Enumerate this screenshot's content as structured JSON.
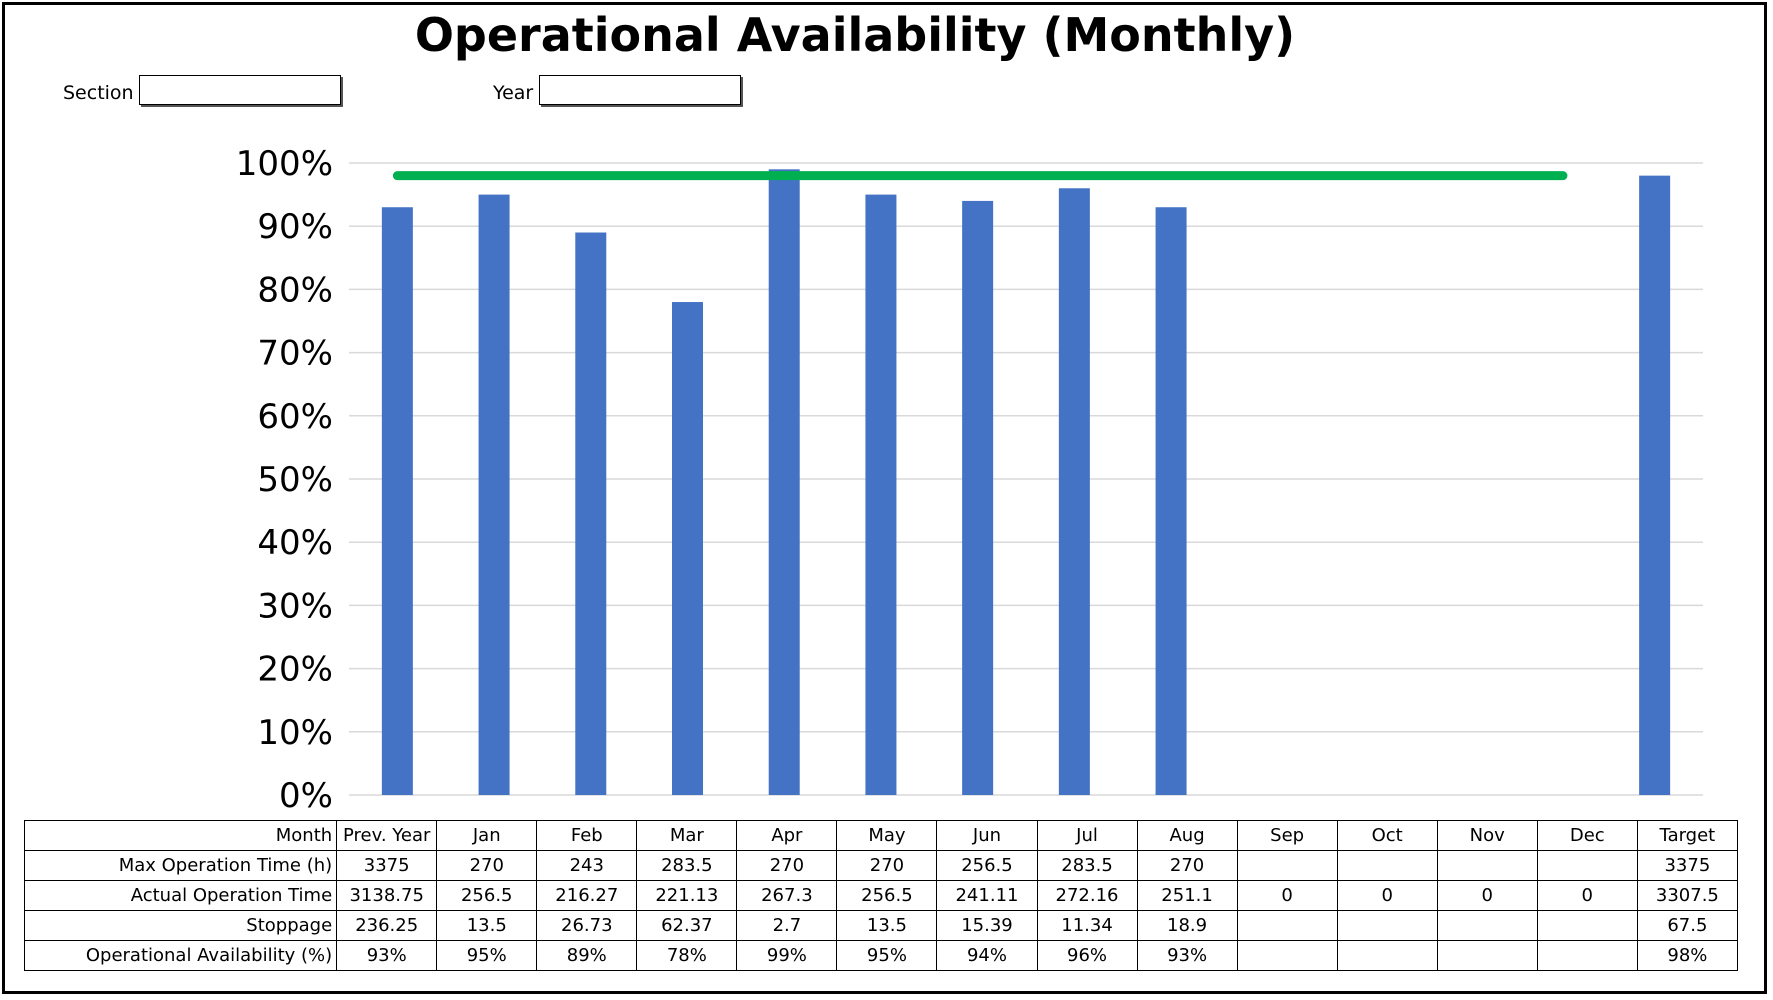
{
  "title": "Operational Availability (Monthly)",
  "filters": {
    "section_label": "Section",
    "section_value": "",
    "year_label": "Year",
    "year_value": ""
  },
  "colors": {
    "bar": "#4472C4",
    "target_line": "#00B050",
    "grid": "#D9D9D9"
  },
  "chart_data": {
    "type": "bar",
    "categories": [
      "Prev. Year",
      "Jan",
      "Feb",
      "Mar",
      "Apr",
      "May",
      "Jun",
      "Jul",
      "Aug",
      "Sep",
      "Oct",
      "Nov",
      "Dec",
      "Target"
    ],
    "values": [
      0.93,
      0.95,
      0.89,
      0.78,
      0.99,
      0.95,
      0.94,
      0.96,
      0.93,
      null,
      null,
      null,
      null,
      0.98
    ],
    "target_line": {
      "value": 0.98,
      "from_category": "Prev. Year",
      "to_category": "Target"
    },
    "ylim": [
      0,
      1
    ],
    "yticks": [
      "0%",
      "10%",
      "20%",
      "30%",
      "40%",
      "50%",
      "60%",
      "70%",
      "80%",
      "90%",
      "100%"
    ],
    "grid": true,
    "title": "Operational Availability (Monthly)",
    "xlabel": "",
    "ylabel": ""
  },
  "table": {
    "header_label": "Month",
    "columns": [
      "Prev. Year",
      "Jan",
      "Feb",
      "Mar",
      "Apr",
      "May",
      "Jun",
      "Jul",
      "Aug",
      "Sep",
      "Oct",
      "Nov",
      "Dec",
      "Target"
    ],
    "rows": [
      {
        "label": "Max Operation Time (h)",
        "cells": [
          "3375",
          "270",
          "243",
          "283.5",
          "270",
          "270",
          "256.5",
          "283.5",
          "270",
          "",
          "",
          "",
          "",
          "3375"
        ]
      },
      {
        "label": "Actual Operation Time",
        "cells": [
          "3138.75",
          "256.5",
          "216.27",
          "221.13",
          "267.3",
          "256.5",
          "241.11",
          "272.16",
          "251.1",
          "0",
          "0",
          "0",
          "0",
          "3307.5"
        ]
      },
      {
        "label": "Stoppage",
        "cells": [
          "236.25",
          "13.5",
          "26.73",
          "62.37",
          "2.7",
          "13.5",
          "15.39",
          "11.34",
          "18.9",
          "",
          "",
          "",
          "",
          "67.5"
        ]
      },
      {
        "label": "Operational Availability (%)",
        "cells": [
          "93%",
          "95%",
          "89%",
          "78%",
          "99%",
          "95%",
          "94%",
          "96%",
          "93%",
          "",
          "",
          "",
          "",
          "98%"
        ]
      }
    ]
  }
}
